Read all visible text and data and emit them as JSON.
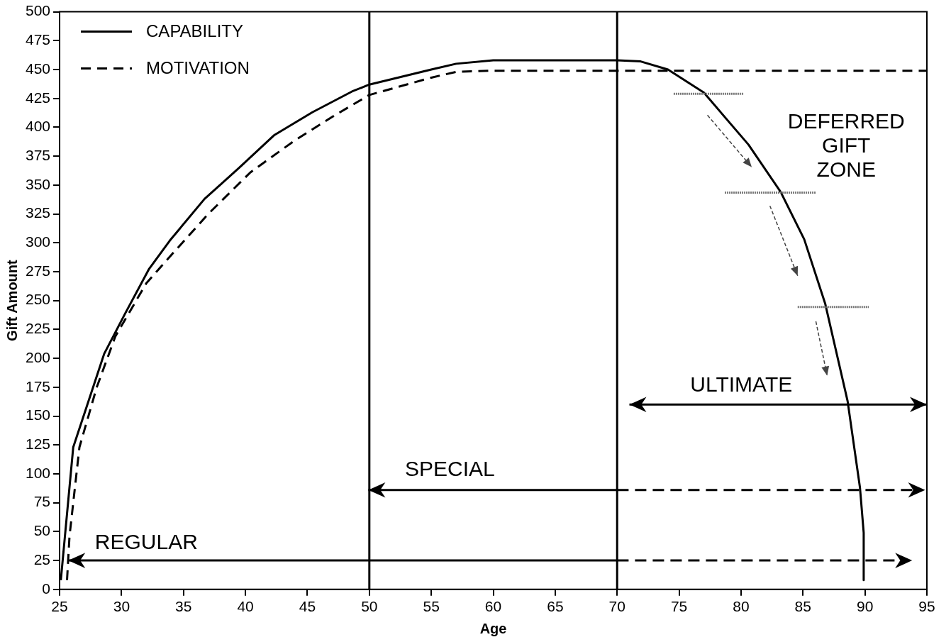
{
  "chart_data": {
    "type": "line",
    "xlabel": "Age",
    "ylabel": "Gift Amount",
    "xlim": [
      25,
      95
    ],
    "xticks": [
      25,
      30,
      35,
      40,
      45,
      50,
      55,
      60,
      65,
      70,
      75,
      80,
      85,
      90,
      95
    ],
    "ylim": [
      0,
      500
    ],
    "yticks": [
      0,
      25,
      50,
      75,
      100,
      125,
      150,
      175,
      200,
      225,
      250,
      275,
      300,
      325,
      350,
      375,
      400,
      425,
      450,
      475,
      500
    ],
    "grid": false,
    "legend": "top left",
    "marker": "none",
    "series": [
      {
        "name": "CAPABILITY",
        "color": "#000000",
        "line_style": "solid",
        "x": [
          25.1,
          26.1,
          28.6,
          30.3,
          32.2,
          33.9,
          36.7,
          39.5,
          42.3,
          45.4,
          48.6,
          50,
          55,
          57,
          60,
          65,
          70,
          71.9,
          74.1,
          77,
          80.6,
          83.2,
          85.1,
          86.8,
          88.6,
          89.6,
          89.9,
          89.9
        ],
        "values": [
          8,
          123,
          204,
          239,
          277,
          302,
          338,
          365,
          393,
          413,
          431,
          437,
          450,
          455,
          458,
          458,
          458,
          457,
          450,
          430,
          385,
          344,
          303,
          247,
          163,
          88,
          49,
          8
        ]
      },
      {
        "name": "MOTIVATION",
        "color": "#000000",
        "line_style": "dashed",
        "x": [
          25.6,
          25.8,
          26.6,
          28,
          29.5,
          32,
          33.9,
          37,
          40.4,
          43.9,
          47,
          50,
          55,
          57,
          60,
          95
        ],
        "values": [
          8,
          46,
          123,
          175,
          219,
          265,
          288,
          325,
          361,
          388,
          409,
          428,
          443,
          448,
          449,
          449
        ]
      }
    ],
    "ref_lines": [
      {
        "axis": "x",
        "value": 50,
        "color": "#000000"
      },
      {
        "axis": "x",
        "value": 70,
        "color": "#000000"
      }
    ],
    "annotations": [
      "REGULAR",
      "SPECIAL",
      "ULTIMATE",
      "DEFERRED GIFT ZONE"
    ]
  }
}
